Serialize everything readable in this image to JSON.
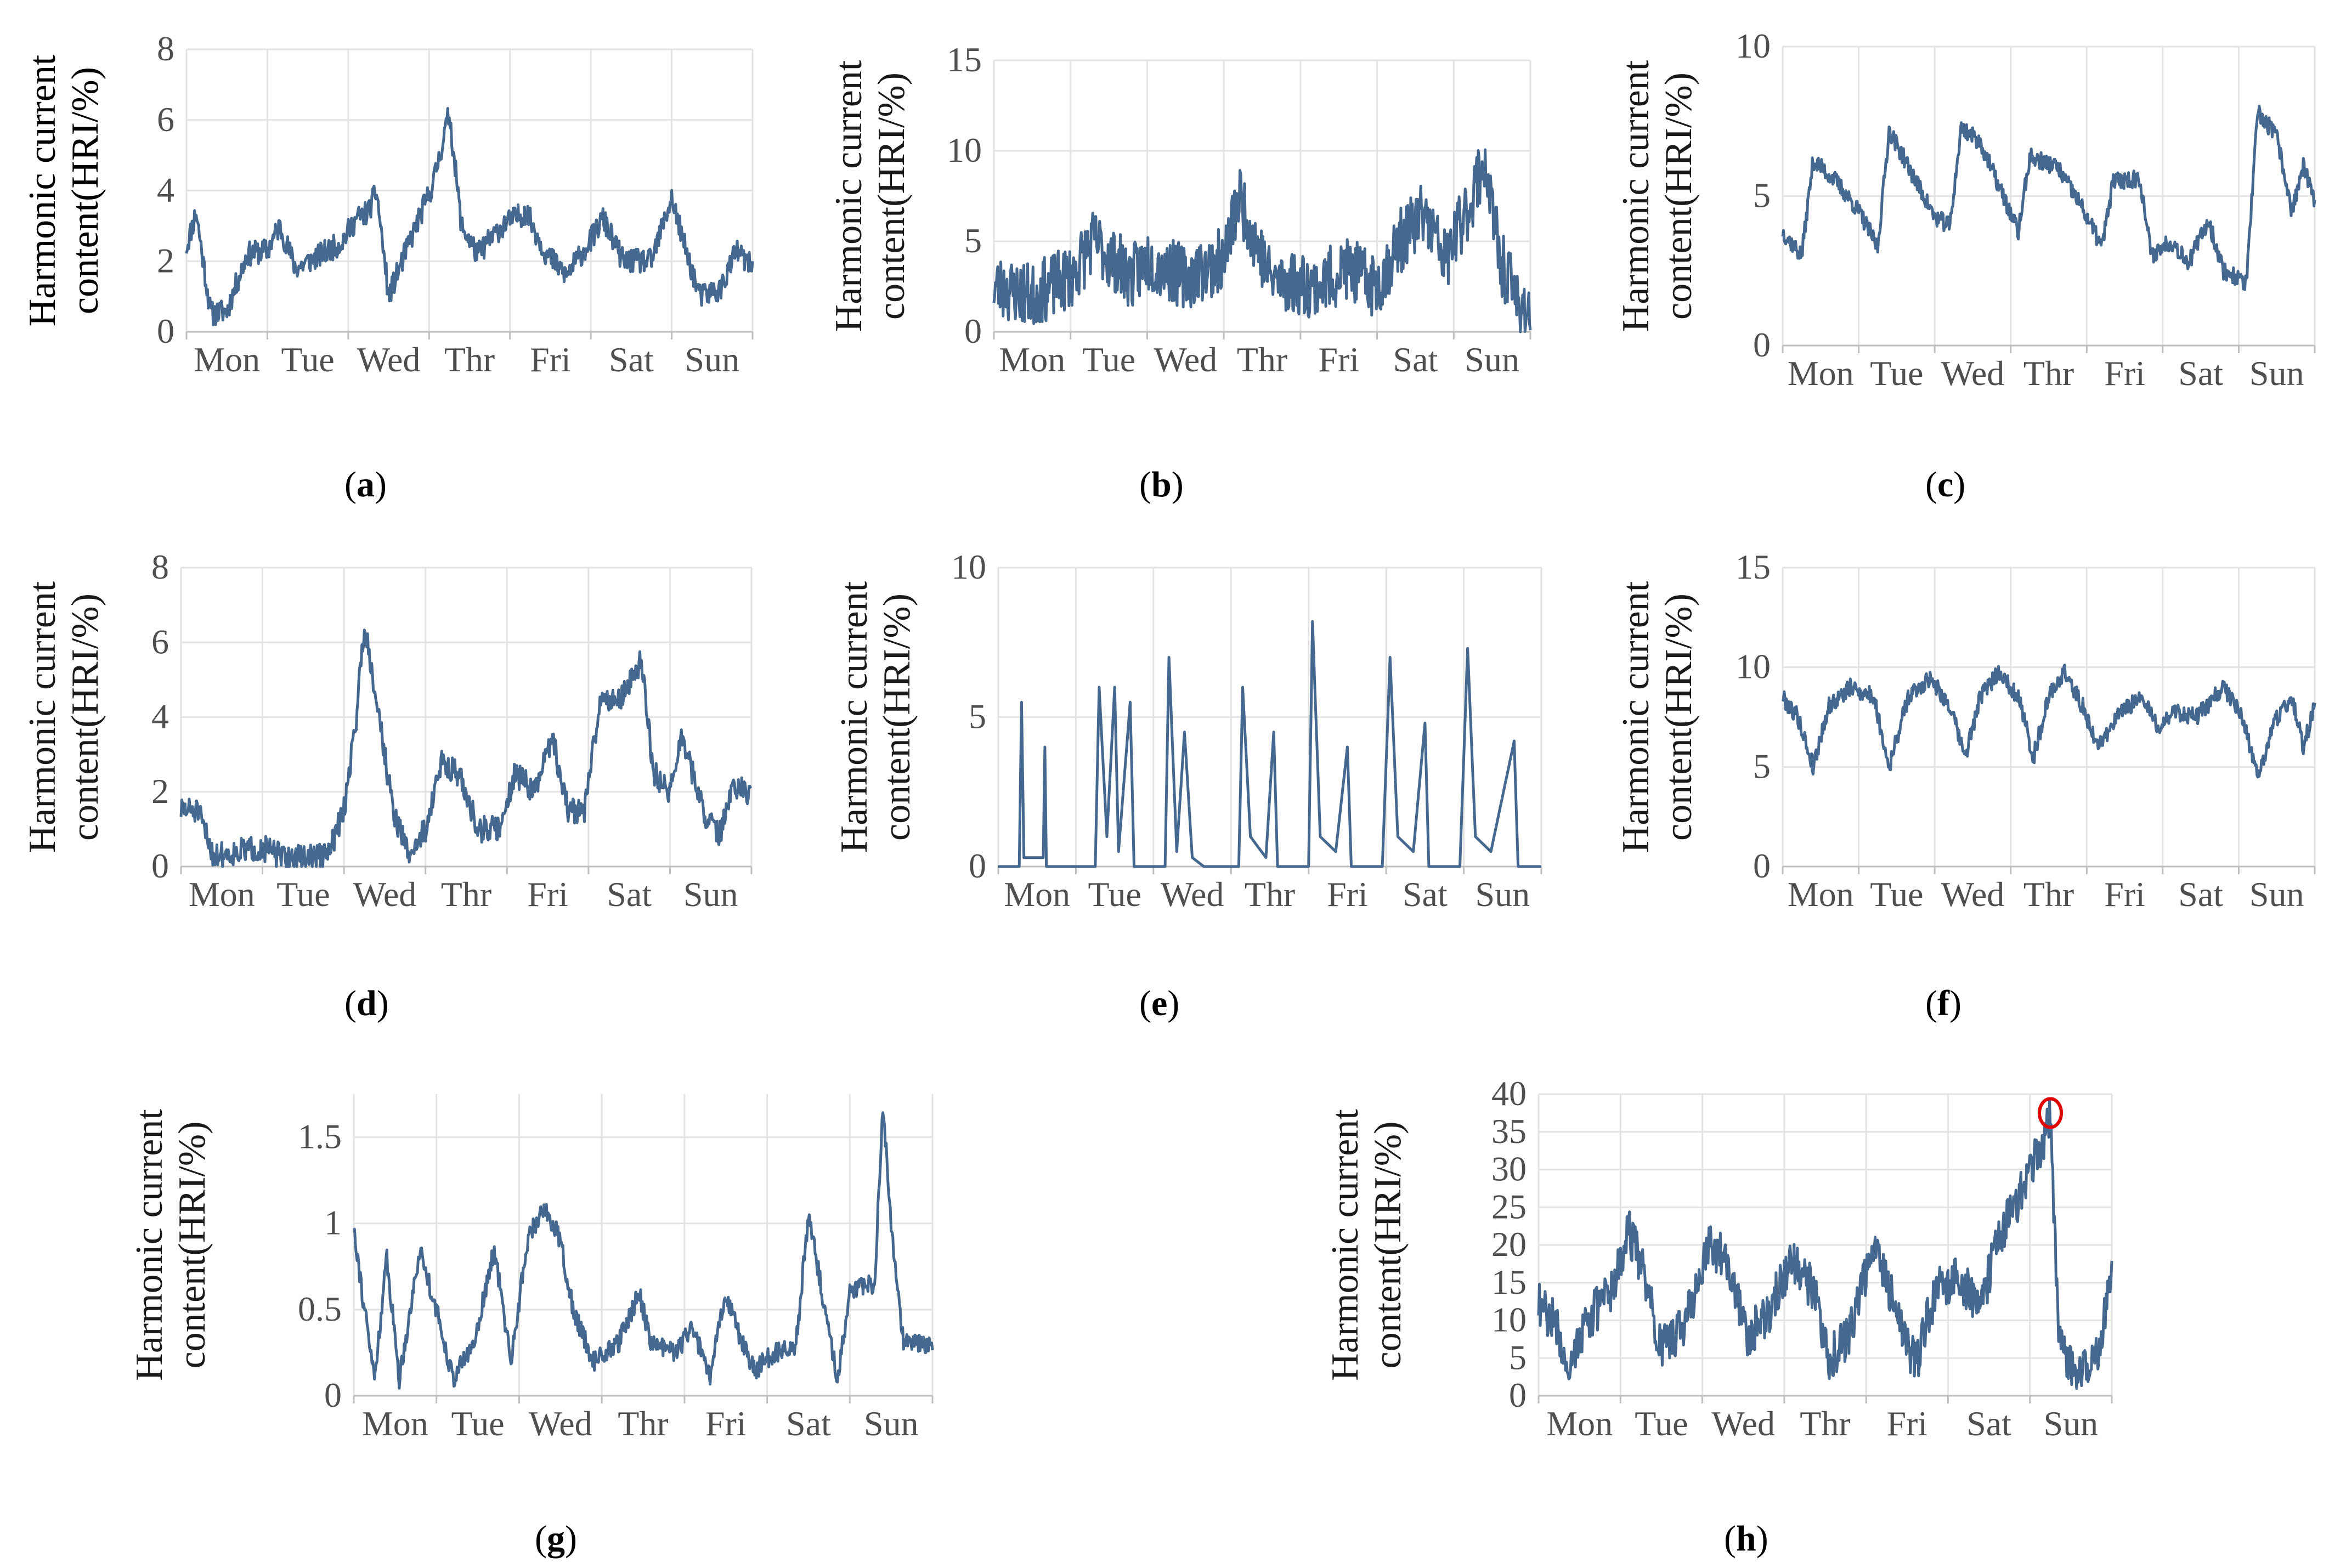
{
  "figure": {
    "colors": {
      "series": "#44688F",
      "grid": "#e3e3e3",
      "axis": "#bfbfbf",
      "highlight": "#e00000"
    }
  },
  "chart_data": [
    {
      "id": "a",
      "type": "line",
      "caption": "a",
      "ylabel": [
        "Harmonic current",
        "content(HRI/%)"
      ],
      "ylim": [
        0,
        8
      ],
      "yticks": [
        0,
        2,
        4,
        6,
        8
      ],
      "xticks": [
        "Mon",
        "Tue",
        "Wed",
        "Thr",
        "Fri",
        "Sat",
        "Sun"
      ],
      "keypoints": [
        [
          0,
          2.4
        ],
        [
          0.12,
          3.4
        ],
        [
          0.3,
          0.5
        ],
        [
          0.5,
          0.6
        ],
        [
          0.75,
          2.2
        ],
        [
          1.0,
          2.3
        ],
        [
          1.15,
          3.0
        ],
        [
          1.35,
          1.8
        ],
        [
          1.6,
          2.1
        ],
        [
          1.9,
          2.5
        ],
        [
          2.1,
          3.2
        ],
        [
          2.25,
          3.4
        ],
        [
          2.35,
          4.0
        ],
        [
          2.5,
          1.0
        ],
        [
          2.75,
          2.5
        ],
        [
          3.05,
          4.2
        ],
        [
          3.25,
          6.2
        ],
        [
          3.4,
          3.0
        ],
        [
          3.6,
          2.2
        ],
        [
          3.9,
          3.0
        ],
        [
          4.2,
          3.4
        ],
        [
          4.45,
          2.2
        ],
        [
          4.7,
          1.6
        ],
        [
          5.0,
          2.6
        ],
        [
          5.15,
          3.2
        ],
        [
          5.4,
          2.0
        ],
        [
          5.75,
          2.0
        ],
        [
          6.0,
          3.8
        ],
        [
          6.15,
          2.5
        ],
        [
          6.35,
          1.0
        ],
        [
          6.6,
          1.2
        ],
        [
          6.8,
          2.3
        ],
        [
          7.0,
          1.8
        ]
      ],
      "noise": 0.35,
      "seed": 11
    },
    {
      "id": "b",
      "type": "line",
      "caption": "b",
      "ylabel": [
        "Harmonic current",
        "content(HRI/%)"
      ],
      "ylim": [
        0,
        15
      ],
      "yticks": [
        0,
        5,
        10,
        15
      ],
      "xticks": [
        "Mon",
        "Tue",
        "Wed",
        "Thr",
        "Fri",
        "Sat",
        "Sun"
      ],
      "keypoints": [
        [
          0,
          2.5
        ],
        [
          0.5,
          2.0
        ],
        [
          1.0,
          3.0
        ],
        [
          1.3,
          5.0
        ],
        [
          1.8,
          3.0
        ],
        [
          2.0,
          4.0
        ],
        [
          2.5,
          3.0
        ],
        [
          3.0,
          4.0
        ],
        [
          3.2,
          7.5
        ],
        [
          3.6,
          3.0
        ],
        [
          4.2,
          2.5
        ],
        [
          4.6,
          3.5
        ],
        [
          5.0,
          2.5
        ],
        [
          5.3,
          5.0
        ],
        [
          5.6,
          6.5
        ],
        [
          5.9,
          4.0
        ],
        [
          6.2,
          7.0
        ],
        [
          6.4,
          9.5
        ],
        [
          6.6,
          4.0
        ],
        [
          6.8,
          2.0
        ],
        [
          7.0,
          1.0
        ]
      ],
      "noise": 1.8,
      "seed": 23
    },
    {
      "id": "c",
      "type": "line",
      "caption": "c",
      "ylabel": [
        "Harmonic current",
        "content(HRI/%)"
      ],
      "ylim": [
        0,
        10
      ],
      "yticks": [
        0,
        5,
        10
      ],
      "xticks": [
        "Mon",
        "Tue",
        "Wed",
        "Thr",
        "Fri",
        "Sat",
        "Sun"
      ],
      "keypoints": [
        [
          0,
          3.8
        ],
        [
          0.25,
          3.0
        ],
        [
          0.4,
          6.2
        ],
        [
          0.7,
          5.5
        ],
        [
          1.0,
          4.5
        ],
        [
          1.25,
          3.3
        ],
        [
          1.4,
          7.2
        ],
        [
          1.65,
          6.0
        ],
        [
          2.0,
          4.3
        ],
        [
          2.2,
          4.0
        ],
        [
          2.35,
          7.3
        ],
        [
          2.6,
          6.8
        ],
        [
          2.9,
          5.0
        ],
        [
          3.1,
          3.8
        ],
        [
          3.25,
          6.3
        ],
        [
          3.6,
          6.0
        ],
        [
          3.9,
          4.8
        ],
        [
          4.2,
          3.3
        ],
        [
          4.35,
          5.5
        ],
        [
          4.7,
          5.6
        ],
        [
          4.85,
          3.0
        ],
        [
          5.1,
          3.5
        ],
        [
          5.35,
          2.8
        ],
        [
          5.6,
          4.2
        ],
        [
          5.8,
          2.5
        ],
        [
          6.1,
          2.1
        ],
        [
          6.25,
          7.8
        ],
        [
          6.5,
          7.0
        ],
        [
          6.7,
          4.5
        ],
        [
          6.85,
          6.0
        ],
        [
          7.0,
          4.8
        ]
      ],
      "noise": 0.3,
      "seed": 37
    },
    {
      "id": "d",
      "type": "line",
      "caption": "d",
      "ylabel": [
        "Harmonic current",
        "content(HRI/%)"
      ],
      "ylim": [
        0,
        8
      ],
      "yticks": [
        0,
        2,
        4,
        6,
        8
      ],
      "xticks": [
        "Mon",
        "Tue",
        "Wed",
        "Thr",
        "Fri",
        "Sat",
        "Sun"
      ],
      "keypoints": [
        [
          0,
          1.5
        ],
        [
          0.2,
          1.5
        ],
        [
          0.4,
          0.3
        ],
        [
          0.7,
          0.4
        ],
        [
          1.0,
          0.5
        ],
        [
          1.3,
          0.2
        ],
        [
          1.8,
          0.3
        ],
        [
          2.0,
          1.5
        ],
        [
          2.15,
          4.0
        ],
        [
          2.25,
          6.5
        ],
        [
          2.4,
          4.5
        ],
        [
          2.6,
          1.5
        ],
        [
          2.8,
          0.3
        ],
        [
          3.0,
          1.0
        ],
        [
          3.2,
          2.8
        ],
        [
          3.4,
          2.5
        ],
        [
          3.65,
          1.0
        ],
        [
          3.9,
          1.0
        ],
        [
          4.1,
          2.5
        ],
        [
          4.35,
          2.0
        ],
        [
          4.55,
          3.5
        ],
        [
          4.75,
          1.5
        ],
        [
          4.95,
          1.5
        ],
        [
          5.15,
          4.5
        ],
        [
          5.4,
          4.5
        ],
        [
          5.65,
          5.5
        ],
        [
          5.8,
          2.5
        ],
        [
          6.0,
          2.0
        ],
        [
          6.15,
          3.5
        ],
        [
          6.4,
          1.5
        ],
        [
          6.6,
          0.8
        ],
        [
          6.8,
          2.2
        ],
        [
          7.0,
          1.8
        ]
      ],
      "noise": 0.35,
      "seed": 51
    },
    {
      "id": "e",
      "type": "line",
      "caption": "e",
      "ylabel": [
        "Harmonic current",
        "content(HRI/%)"
      ],
      "ylim": [
        0,
        10
      ],
      "yticks": [
        0,
        5,
        10
      ],
      "xticks": [
        "Mon",
        "Tue",
        "Wed",
        "Thr",
        "Fri",
        "Sat",
        "Sun"
      ],
      "keypoints": [
        [
          0,
          0
        ],
        [
          0.27,
          0
        ],
        [
          0.3,
          5.5
        ],
        [
          0.33,
          0.3
        ],
        [
          0.58,
          0.3
        ],
        [
          0.6,
          4.0
        ],
        [
          0.62,
          0
        ],
        [
          1.25,
          0
        ],
        [
          1.3,
          6.0
        ],
        [
          1.4,
          1.0
        ],
        [
          1.5,
          6.0
        ],
        [
          1.55,
          0.5
        ],
        [
          1.7,
          5.5
        ],
        [
          1.75,
          0
        ],
        [
          2.15,
          0
        ],
        [
          2.2,
          7.0
        ],
        [
          2.3,
          0.5
        ],
        [
          2.4,
          4.5
        ],
        [
          2.5,
          0.3
        ],
        [
          2.65,
          0
        ],
        [
          3.1,
          0
        ],
        [
          3.15,
          6.0
        ],
        [
          3.25,
          1.0
        ],
        [
          3.45,
          0.3
        ],
        [
          3.55,
          4.5
        ],
        [
          3.6,
          0
        ],
        [
          4.0,
          0
        ],
        [
          4.05,
          8.2
        ],
        [
          4.15,
          1.0
        ],
        [
          4.35,
          0.5
        ],
        [
          4.5,
          4.0
        ],
        [
          4.55,
          0
        ],
        [
          4.95,
          0
        ],
        [
          5.05,
          7.0
        ],
        [
          5.15,
          1.0
        ],
        [
          5.35,
          0.5
        ],
        [
          5.5,
          4.8
        ],
        [
          5.55,
          0
        ],
        [
          5.95,
          0
        ],
        [
          6.05,
          7.3
        ],
        [
          6.15,
          1.0
        ],
        [
          6.35,
          0.5
        ],
        [
          6.65,
          4.2
        ],
        [
          6.7,
          0
        ],
        [
          7.0,
          0
        ]
      ],
      "noise": 0.0,
      "seed": 63
    },
    {
      "id": "f",
      "type": "line",
      "caption": "f",
      "ylabel": [
        "Harmonic current",
        "content(HRI/%)"
      ],
      "ylim": [
        0,
        15
      ],
      "yticks": [
        0,
        5,
        10,
        15
      ],
      "xticks": [
        "Mon",
        "Tue",
        "Wed",
        "Thr",
        "Fri",
        "Sat",
        "Sun"
      ],
      "keypoints": [
        [
          0,
          8.5
        ],
        [
          0.2,
          7.5
        ],
        [
          0.4,
          5.0
        ],
        [
          0.6,
          8.0
        ],
        [
          0.9,
          9.0
        ],
        [
          1.2,
          8.5
        ],
        [
          1.4,
          5.0
        ],
        [
          1.65,
          8.5
        ],
        [
          1.95,
          9.5
        ],
        [
          2.2,
          8.0
        ],
        [
          2.4,
          5.5
        ],
        [
          2.6,
          8.5
        ],
        [
          2.85,
          9.8
        ],
        [
          3.1,
          8.5
        ],
        [
          3.3,
          5.5
        ],
        [
          3.5,
          8.5
        ],
        [
          3.7,
          9.8
        ],
        [
          3.95,
          8.0
        ],
        [
          4.15,
          6.0
        ],
        [
          4.4,
          7.5
        ],
        [
          4.7,
          8.5
        ],
        [
          4.95,
          7.0
        ],
        [
          5.15,
          7.8
        ],
        [
          5.45,
          7.5
        ],
        [
          5.8,
          9.0
        ],
        [
          6.05,
          7.5
        ],
        [
          6.25,
          4.5
        ],
        [
          6.5,
          7.5
        ],
        [
          6.7,
          8.5
        ],
        [
          6.85,
          6.0
        ],
        [
          7.0,
          8.0
        ]
      ],
      "noise": 0.45,
      "seed": 79
    },
    {
      "id": "g",
      "type": "line",
      "caption": "g",
      "ylabel": [
        "Harmonic current",
        "content(HRI/%)"
      ],
      "ylim": [
        0,
        1.75
      ],
      "yticks": [
        0,
        0.5,
        1,
        1.5
      ],
      "xticks": [
        "Mon",
        "Tue",
        "Wed",
        "Thr",
        "Fri",
        "Sat",
        "Sun"
      ],
      "keypoints": [
        [
          0,
          1.0
        ],
        [
          0.1,
          0.6
        ],
        [
          0.25,
          0.1
        ],
        [
          0.4,
          0.8
        ],
        [
          0.55,
          0.1
        ],
        [
          0.8,
          0.85
        ],
        [
          1.0,
          0.5
        ],
        [
          1.2,
          0.1
        ],
        [
          1.45,
          0.3
        ],
        [
          1.7,
          0.85
        ],
        [
          1.9,
          0.2
        ],
        [
          2.1,
          0.9
        ],
        [
          2.3,
          1.1
        ],
        [
          2.5,
          0.9
        ],
        [
          2.65,
          0.5
        ],
        [
          2.9,
          0.2
        ],
        [
          3.2,
          0.3
        ],
        [
          3.45,
          0.6
        ],
        [
          3.6,
          0.3
        ],
        [
          3.9,
          0.25
        ],
        [
          4.1,
          0.4
        ],
        [
          4.3,
          0.1
        ],
        [
          4.5,
          0.6
        ],
        [
          4.7,
          0.3
        ],
        [
          4.85,
          0.15
        ],
        [
          5.1,
          0.25
        ],
        [
          5.35,
          0.3
        ],
        [
          5.5,
          1.05
        ],
        [
          5.7,
          0.5
        ],
        [
          5.85,
          0.1
        ],
        [
          6.0,
          0.6
        ],
        [
          6.3,
          0.65
        ],
        [
          6.4,
          1.7
        ],
        [
          6.5,
          1.0
        ],
        [
          6.65,
          0.3
        ],
        [
          6.8,
          0.3
        ],
        [
          7.0,
          0.3
        ]
      ],
      "noise": 0.06,
      "seed": 91
    },
    {
      "id": "h",
      "type": "line",
      "caption": "h",
      "ylabel": [
        "Harmonic current",
        "content(HRI/%)"
      ],
      "ylim": [
        0,
        40
      ],
      "yticks": [
        0,
        5,
        10,
        15,
        20,
        25,
        30,
        35,
        40
      ],
      "xticks": [
        "Mon",
        "Tue",
        "Wed",
        "Thr",
        "Fri",
        "Sat",
        "Sun"
      ],
      "highlight": {
        "x": 6.25,
        "y": 37.5
      },
      "keypoints": [
        [
          0,
          12
        ],
        [
          0.2,
          10
        ],
        [
          0.35,
          4
        ],
        [
          0.6,
          10
        ],
        [
          0.9,
          14
        ],
        [
          1.1,
          22
        ],
        [
          1.3,
          16
        ],
        [
          1.5,
          6
        ],
        [
          1.8,
          10
        ],
        [
          2.1,
          20
        ],
        [
          2.3,
          18
        ],
        [
          2.55,
          8
        ],
        [
          2.8,
          11
        ],
        [
          3.1,
          18
        ],
        [
          3.35,
          14
        ],
        [
          3.55,
          5
        ],
        [
          3.8,
          8
        ],
        [
          4.1,
          20
        ],
        [
          4.35,
          12
        ],
        [
          4.6,
          4
        ],
        [
          4.85,
          14
        ],
        [
          5.1,
          16
        ],
        [
          5.4,
          12
        ],
        [
          5.6,
          20
        ],
        [
          5.85,
          26
        ],
        [
          6.1,
          32
        ],
        [
          6.25,
          37
        ],
        [
          6.35,
          8
        ],
        [
          6.55,
          3
        ],
        [
          6.85,
          5
        ],
        [
          7.0,
          18
        ]
      ],
      "noise": 3.0,
      "seed": 107
    }
  ]
}
